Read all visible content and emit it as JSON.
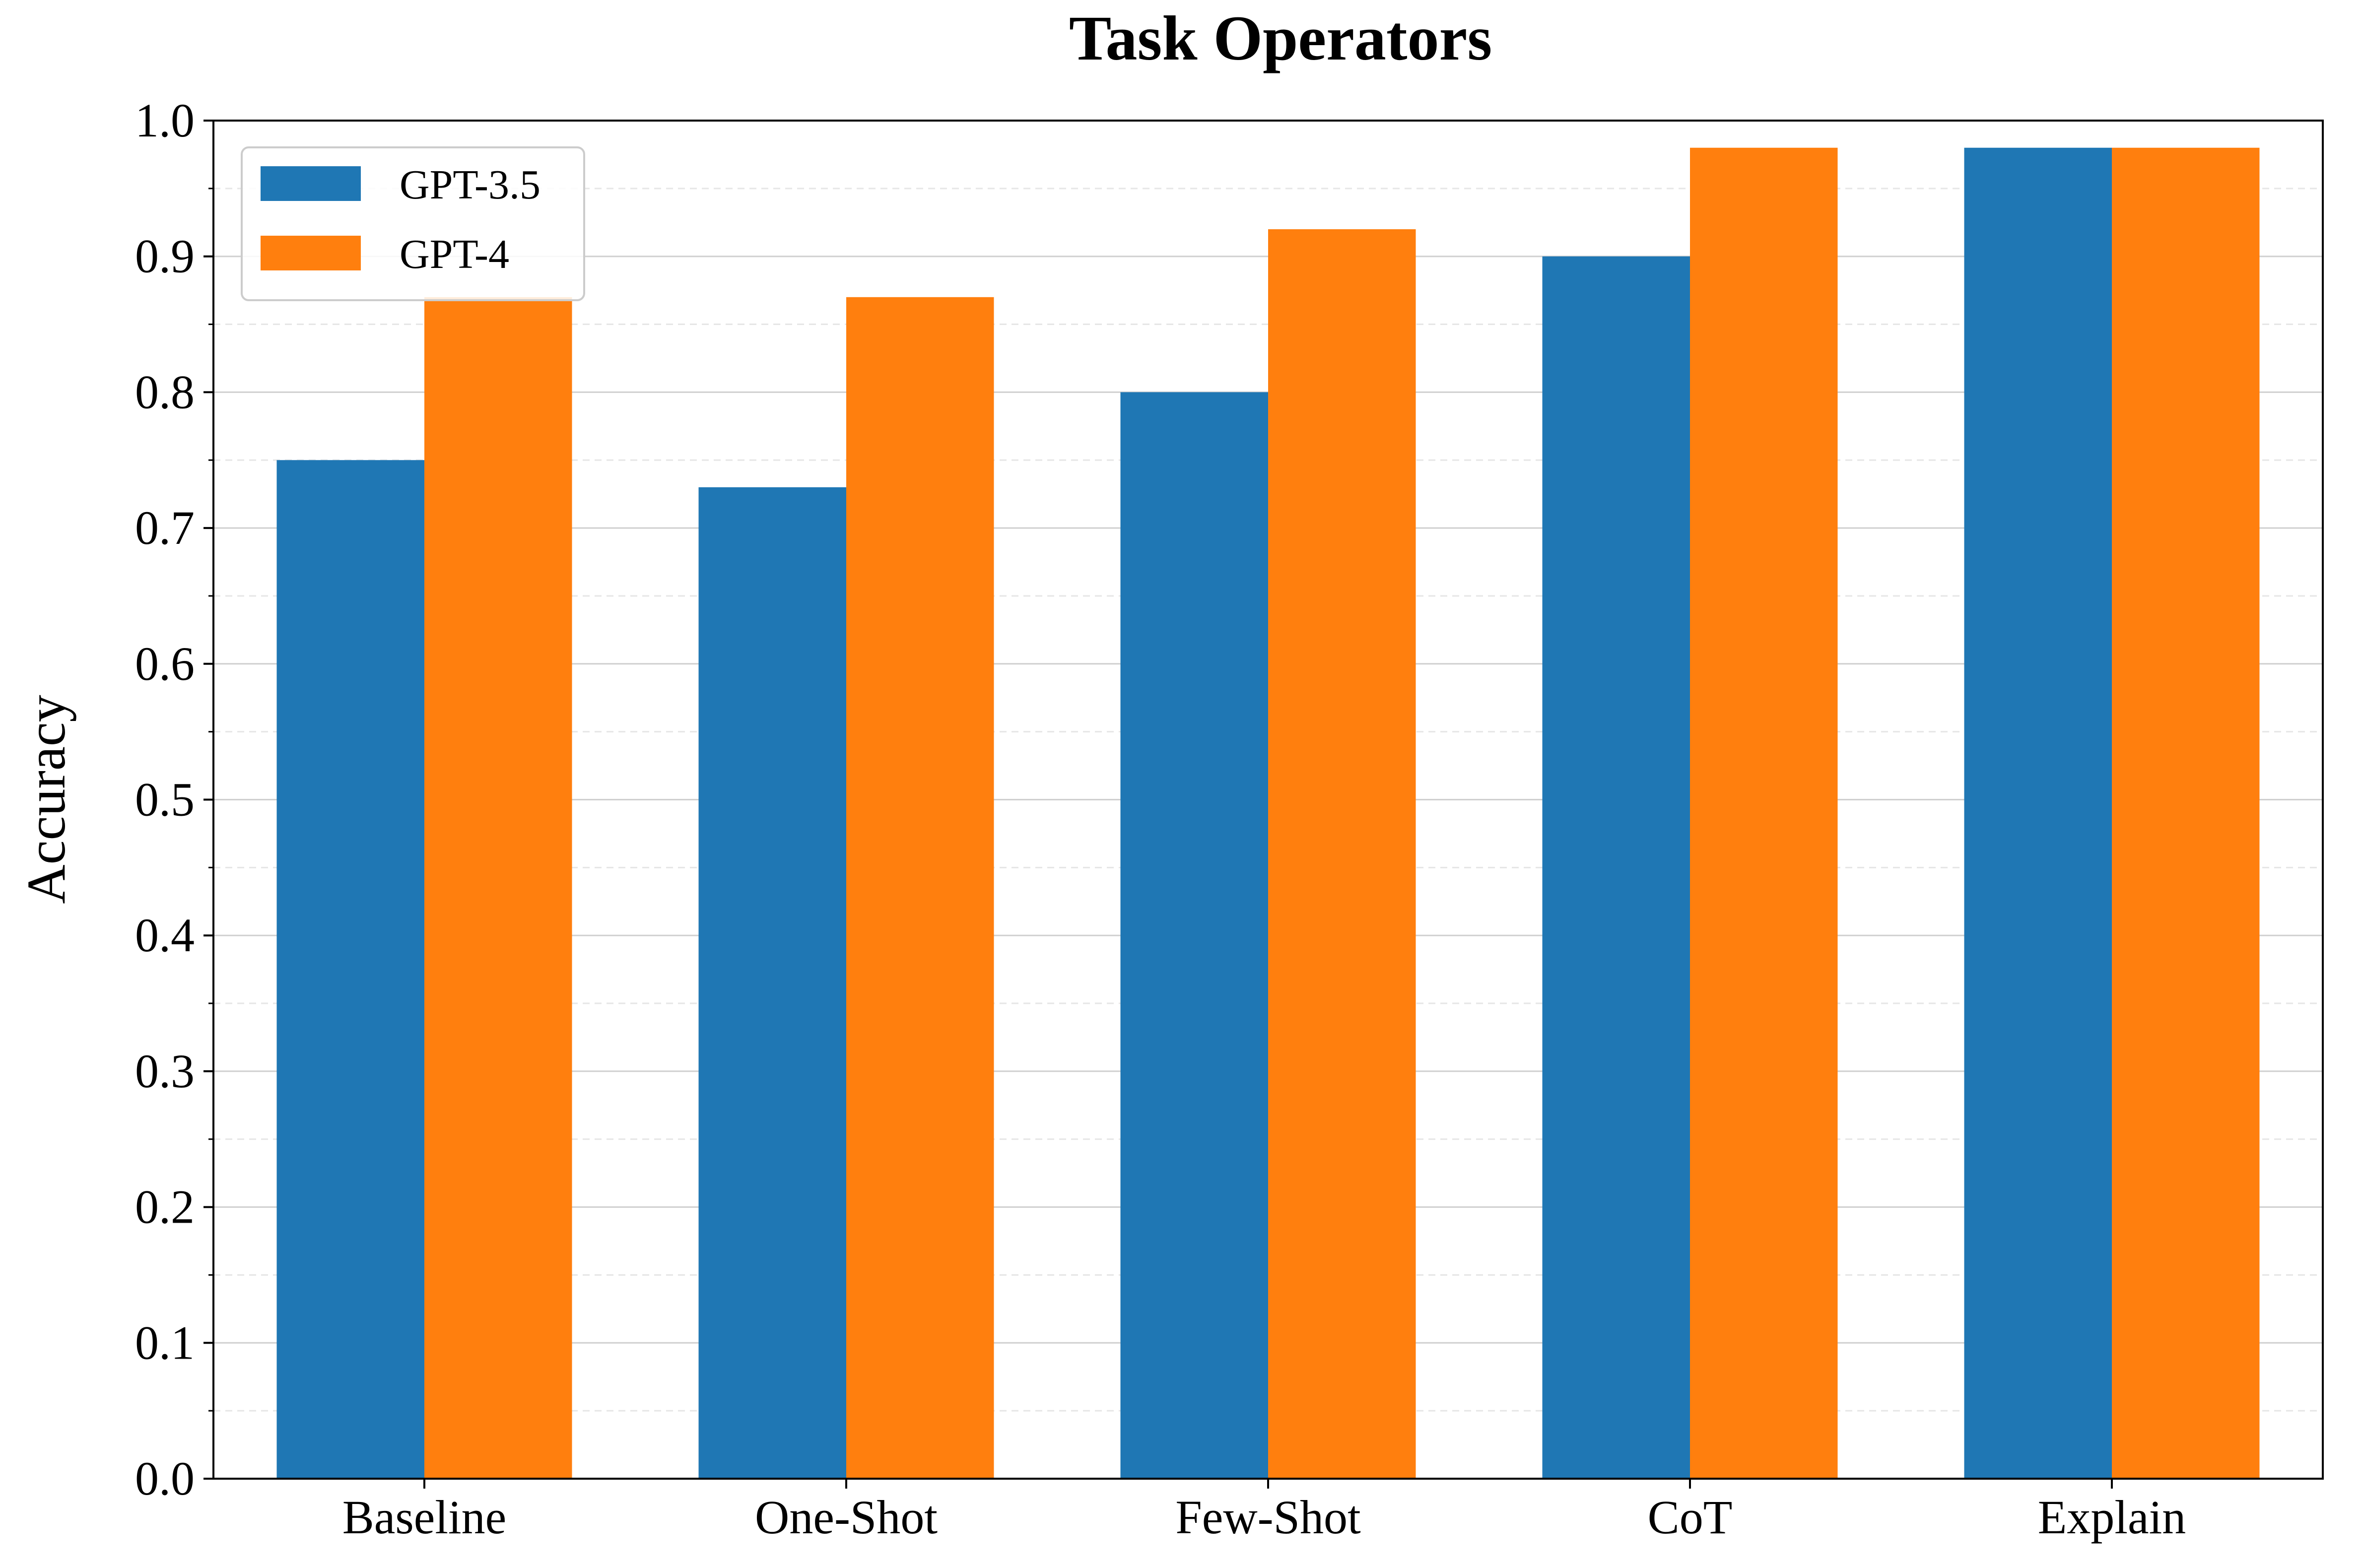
{
  "chart_data": {
    "type": "bar",
    "title": "Task Operators",
    "xlabel": "",
    "ylabel": "Accuracy",
    "categories": [
      "Baseline",
      "One-Shot",
      "Few-Shot",
      "CoT",
      "Explain"
    ],
    "series": [
      {
        "name": "GPT-3.5",
        "color": "#1f77b4",
        "values": [
          0.75,
          0.73,
          0.8,
          0.9,
          0.98
        ]
      },
      {
        "name": "GPT-4",
        "color": "#ff7f0e",
        "values": [
          0.87,
          0.87,
          0.92,
          0.98,
          0.98
        ]
      }
    ],
    "ylim": [
      0.0,
      1.0
    ],
    "yticks": [
      "0.0",
      "0.1",
      "0.2",
      "0.3",
      "0.4",
      "0.5",
      "0.6",
      "0.7",
      "0.8",
      "0.9",
      "1.0"
    ],
    "grid": "horizontal major solid, minor dashed",
    "legend_position": "top-left"
  }
}
